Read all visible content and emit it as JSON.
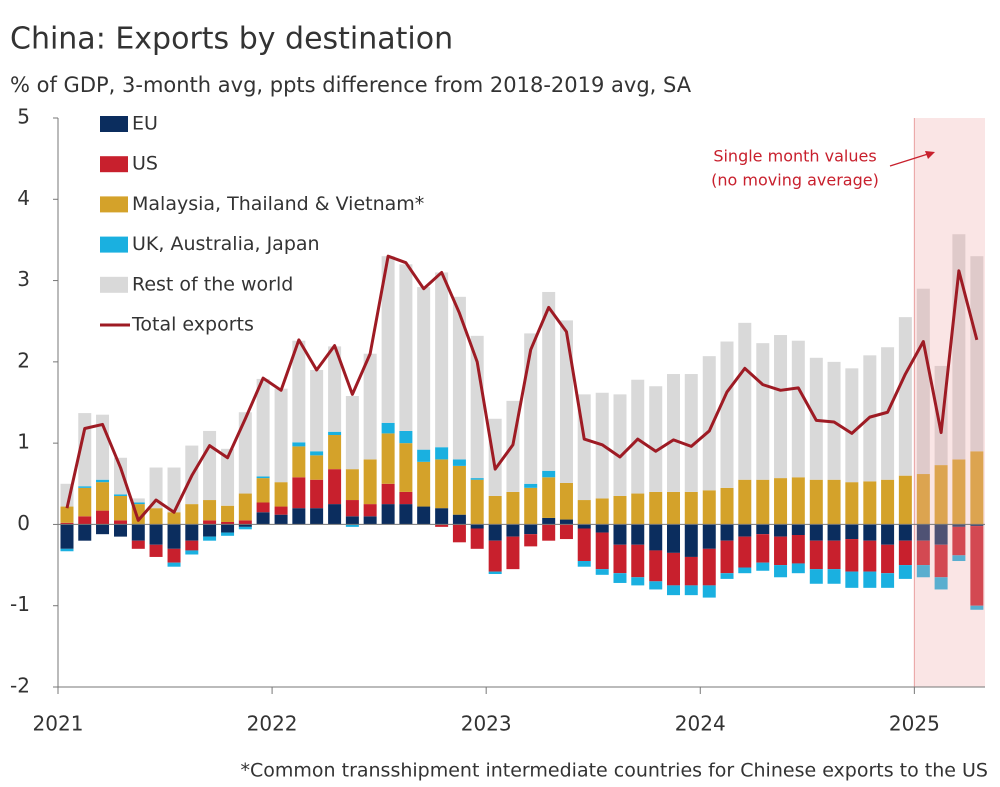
{
  "chart_data": {
    "type": "bar",
    "stacked": true,
    "title": "China: Exports by destination",
    "subtitle": "% of GDP, 3-month avg, ppts difference from 2018-2019 avg, SA",
    "footnote": "*Common transshipment intermediate countries for Chinese exports to the US",
    "annotation": [
      "Single month values",
      "(no moving average)"
    ],
    "highlight_from": 2025,
    "x": [
      2021.042,
      2021.125,
      2021.208,
      2021.292,
      2021.375,
      2021.458,
      2021.542,
      2021.625,
      2021.708,
      2021.792,
      2021.875,
      2021.958,
      2022.042,
      2022.125,
      2022.208,
      2022.292,
      2022.375,
      2022.458,
      2022.542,
      2022.625,
      2022.708,
      2022.792,
      2022.875,
      2022.958,
      2023.042,
      2023.125,
      2023.208,
      2023.292,
      2023.375,
      2023.458,
      2023.542,
      2023.625,
      2023.708,
      2023.792,
      2023.875,
      2023.958,
      2024.042,
      2024.125,
      2024.208,
      2024.292,
      2024.375,
      2024.458,
      2024.542,
      2024.625,
      2024.708,
      2024.792,
      2024.875,
      2024.958,
      2025.042,
      2025.125,
      2025.208,
      2025.292
    ],
    "xlim": [
      2021,
      2025.33
    ],
    "xticks": [
      2021,
      2022,
      2023,
      2024,
      2025
    ],
    "ylim": [
      -2,
      5
    ],
    "yticks": [
      -2,
      -1,
      0,
      1,
      2,
      3,
      4,
      5
    ],
    "series": [
      {
        "name": "EU",
        "color": "#0b2d5e",
        "values": [
          -0.3,
          -0.2,
          -0.12,
          -0.15,
          -0.2,
          -0.25,
          -0.3,
          -0.2,
          -0.15,
          -0.1,
          -0.03,
          0.15,
          0.12,
          0.2,
          0.2,
          0.25,
          0.1,
          0.1,
          0.25,
          0.25,
          0.22,
          0.2,
          0.12,
          -0.05,
          -0.2,
          -0.15,
          -0.12,
          0.08,
          0.06,
          -0.05,
          -0.1,
          -0.25,
          -0.25,
          -0.32,
          -0.35,
          -0.4,
          -0.3,
          -0.2,
          -0.15,
          -0.12,
          -0.15,
          -0.13,
          -0.2,
          -0.2,
          -0.18,
          -0.2,
          -0.25,
          -0.2,
          -0.2,
          -0.25,
          -0.03,
          -0.02
        ]
      },
      {
        "name": "US",
        "color": "#c8202d",
        "values": [
          0.02,
          0.1,
          0.17,
          0.05,
          -0.1,
          -0.15,
          -0.17,
          -0.12,
          0.05,
          0.03,
          0.05,
          0.12,
          0.1,
          0.38,
          0.35,
          0.43,
          0.2,
          0.15,
          0.25,
          0.15,
          0.0,
          -0.03,
          -0.22,
          -0.25,
          -0.38,
          -0.4,
          -0.15,
          -0.2,
          -0.18,
          -0.4,
          -0.45,
          -0.35,
          -0.4,
          -0.38,
          -0.4,
          -0.35,
          -0.45,
          -0.4,
          -0.38,
          -0.35,
          -0.35,
          -0.35,
          -0.35,
          -0.35,
          -0.4,
          -0.38,
          -0.35,
          -0.3,
          -0.3,
          -0.4,
          -0.35,
          -0.98
        ]
      },
      {
        "name": "Malaysia, Thailand & Vietnam*",
        "color": "#d4a22a",
        "values": [
          0.2,
          0.35,
          0.35,
          0.3,
          0.25,
          0.2,
          0.15,
          0.25,
          0.25,
          0.2,
          0.33,
          0.3,
          0.3,
          0.38,
          0.3,
          0.42,
          0.38,
          0.55,
          0.62,
          0.6,
          0.55,
          0.6,
          0.6,
          0.55,
          0.35,
          0.4,
          0.45,
          0.5,
          0.45,
          0.3,
          0.32,
          0.35,
          0.38,
          0.4,
          0.4,
          0.4,
          0.42,
          0.45,
          0.55,
          0.55,
          0.57,
          0.58,
          0.55,
          0.55,
          0.52,
          0.53,
          0.55,
          0.6,
          0.62,
          0.73,
          0.8,
          0.9
        ]
      },
      {
        "name": "UK, Australia, Japan",
        "color": "#1ab0e0",
        "values": [
          -0.03,
          0.02,
          0.03,
          0.02,
          0.02,
          0,
          -0.05,
          -0.05,
          -0.05,
          -0.04,
          -0.03,
          0.02,
          0,
          0.05,
          0.05,
          0.04,
          -0.03,
          0,
          0.13,
          0.15,
          0.15,
          0.15,
          0.08,
          0.02,
          -0.03,
          0,
          0.05,
          0.08,
          0,
          -0.07,
          -0.07,
          -0.12,
          -0.1,
          -0.1,
          -0.12,
          -0.12,
          -0.15,
          -0.07,
          -0.07,
          -0.1,
          -0.15,
          -0.12,
          -0.18,
          -0.18,
          -0.2,
          -0.2,
          -0.18,
          -0.17,
          -0.15,
          -0.15,
          -0.07,
          -0.05
        ]
      },
      {
        "name": "Rest of the world",
        "color": "#d9d9d9",
        "values": [
          0.28,
          0.9,
          0.8,
          0.45,
          0.05,
          0.5,
          0.55,
          0.72,
          0.85,
          0.7,
          1.0,
          1.2,
          1.15,
          1.25,
          1.0,
          1.05,
          0.9,
          1.3,
          2.05,
          2.05,
          2.0,
          2.15,
          2.0,
          1.75,
          0.95,
          1.12,
          1.85,
          2.2,
          2.0,
          1.3,
          1.3,
          1.25,
          1.4,
          1.3,
          1.45,
          1.45,
          1.65,
          1.8,
          1.93,
          1.68,
          1.76,
          1.68,
          1.5,
          1.45,
          1.4,
          1.55,
          1.63,
          1.95,
          2.28,
          1.22,
          2.77,
          2.4
        ]
      },
      {
        "name": "Total exports",
        "type": "line",
        "color": "#9e1b24",
        "values": [
          0.2,
          1.18,
          1.23,
          0.7,
          0.05,
          0.3,
          0.15,
          0.6,
          0.97,
          0.82,
          1.3,
          1.8,
          1.65,
          2.27,
          1.9,
          2.2,
          1.6,
          2.1,
          3.3,
          3.22,
          2.9,
          3.1,
          2.6,
          2.0,
          0.68,
          0.98,
          2.15,
          2.67,
          2.37,
          1.05,
          0.98,
          0.83,
          1.05,
          0.9,
          1.04,
          0.96,
          1.15,
          1.63,
          1.92,
          1.72,
          1.65,
          1.68,
          1.28,
          1.26,
          1.12,
          1.32,
          1.38,
          1.85,
          2.25,
          1.13,
          3.12,
          2.27
        ]
      }
    ]
  }
}
